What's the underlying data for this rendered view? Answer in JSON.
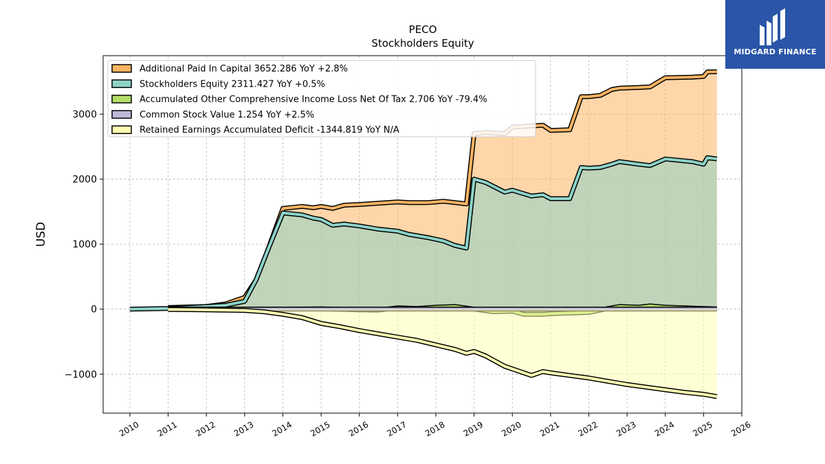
{
  "brand": {
    "name": "MIDGARD FINANCE",
    "bg": "#2a55a8"
  },
  "chart_data": {
    "type": "area",
    "title": "PECO",
    "subtitle": "Stockholders  Equity",
    "ylabel": "USD",
    "xlabel": "",
    "xlim": [
      2009.3,
      2026.0
    ],
    "ylim": [
      -1600,
      3900
    ],
    "yticks": [
      -1000,
      0,
      1000,
      2000,
      3000
    ],
    "xticks": [
      2010,
      2011,
      2012,
      2013,
      2014,
      2015,
      2016,
      2017,
      2018,
      2019,
      2020,
      2021,
      2022,
      2023,
      2024,
      2025,
      2026
    ],
    "grid": true,
    "legend_position": "top-left",
    "series": [
      {
        "name": "Additional Paid In Capital  3652.286 YoY +2.8%",
        "color": "#fdb462",
        "points": [
          [
            2011.0,
            25
          ],
          [
            2012.0,
            40
          ],
          [
            2012.5,
            80
          ],
          [
            2013.0,
            180
          ],
          [
            2013.3,
            450
          ],
          [
            2013.6,
            900
          ],
          [
            2014.0,
            1550
          ],
          [
            2014.5,
            1580
          ],
          [
            2014.8,
            1560
          ],
          [
            2015.0,
            1580
          ],
          [
            2015.3,
            1550
          ],
          [
            2015.6,
            1600
          ],
          [
            2016.0,
            1610
          ],
          [
            2016.5,
            1630
          ],
          [
            2017.0,
            1650
          ],
          [
            2017.3,
            1640
          ],
          [
            2017.8,
            1640
          ],
          [
            2018.2,
            1660
          ],
          [
            2018.5,
            1640
          ],
          [
            2018.8,
            1620
          ],
          [
            2019.0,
            2700
          ],
          [
            2019.3,
            2720
          ],
          [
            2019.8,
            2700
          ],
          [
            2020.0,
            2800
          ],
          [
            2020.5,
            2820
          ],
          [
            2020.8,
            2830
          ],
          [
            2021.0,
            2750
          ],
          [
            2021.5,
            2760
          ],
          [
            2021.8,
            3270
          ],
          [
            2022.0,
            3270
          ],
          [
            2022.3,
            3290
          ],
          [
            2022.6,
            3380
          ],
          [
            2022.8,
            3400
          ],
          [
            2023.3,
            3410
          ],
          [
            2023.6,
            3420
          ],
          [
            2024.0,
            3560
          ],
          [
            2024.7,
            3570
          ],
          [
            2025.0,
            3580
          ],
          [
            2025.1,
            3650
          ],
          [
            2025.35,
            3652
          ]
        ]
      },
      {
        "name": "Stockholders Equity  2311.427 YoY +0.5%",
        "color": "#8dd3c7",
        "points": [
          [
            2010.0,
            0
          ],
          [
            2011.0,
            10
          ],
          [
            2012.0,
            40
          ],
          [
            2012.5,
            60
          ],
          [
            2013.0,
            120
          ],
          [
            2013.3,
            450
          ],
          [
            2013.6,
            900
          ],
          [
            2014.0,
            1480
          ],
          [
            2014.5,
            1450
          ],
          [
            2014.8,
            1400
          ],
          [
            2015.0,
            1380
          ],
          [
            2015.3,
            1290
          ],
          [
            2015.6,
            1310
          ],
          [
            2016.0,
            1280
          ],
          [
            2016.5,
            1230
          ],
          [
            2017.0,
            1200
          ],
          [
            2017.3,
            1150
          ],
          [
            2017.8,
            1100
          ],
          [
            2018.2,
            1050
          ],
          [
            2018.5,
            980
          ],
          [
            2018.8,
            940
          ],
          [
            2019.0,
            2000
          ],
          [
            2019.3,
            1950
          ],
          [
            2019.8,
            1800
          ],
          [
            2020.0,
            1830
          ],
          [
            2020.5,
            1740
          ],
          [
            2020.8,
            1760
          ],
          [
            2021.0,
            1700
          ],
          [
            2021.5,
            1700
          ],
          [
            2021.8,
            2180
          ],
          [
            2022.0,
            2170
          ],
          [
            2022.3,
            2180
          ],
          [
            2022.6,
            2230
          ],
          [
            2022.8,
            2270
          ],
          [
            2023.3,
            2230
          ],
          [
            2023.6,
            2210
          ],
          [
            2024.0,
            2310
          ],
          [
            2024.7,
            2270
          ],
          [
            2025.0,
            2230
          ],
          [
            2025.1,
            2330
          ],
          [
            2025.35,
            2311
          ]
        ]
      },
      {
        "name": "Accumulated Other Comprehensive Income Loss Net Of Tax  2.706 YoY -79.4%",
        "color": "#b3de69",
        "points": [
          [
            2011.0,
            0
          ],
          [
            2014.0,
            0
          ],
          [
            2015.0,
            5
          ],
          [
            2016.0,
            -10
          ],
          [
            2016.5,
            -15
          ],
          [
            2017.0,
            20
          ],
          [
            2017.5,
            10
          ],
          [
            2018.0,
            30
          ],
          [
            2018.5,
            40
          ],
          [
            2019.0,
            0
          ],
          [
            2019.5,
            -40
          ],
          [
            2020.0,
            -30
          ],
          [
            2020.3,
            -80
          ],
          [
            2020.8,
            -80
          ],
          [
            2021.0,
            -70
          ],
          [
            2021.5,
            -60
          ],
          [
            2022.0,
            -50
          ],
          [
            2022.5,
            10
          ],
          [
            2022.8,
            40
          ],
          [
            2023.3,
            30
          ],
          [
            2023.6,
            50
          ],
          [
            2024.0,
            30
          ],
          [
            2024.5,
            20
          ],
          [
            2025.0,
            10
          ],
          [
            2025.35,
            3
          ]
        ]
      },
      {
        "name": "Common Stock Value  1.254 YoY +2.5%",
        "color": "#bebada",
        "points": [
          [
            2011.0,
            1
          ],
          [
            2025.35,
            1.254
          ]
        ]
      },
      {
        "name": "Retained Earnings Accumulated Deficit  -1344.819 YoY N/A",
        "color": "#ffffb3",
        "points": [
          [
            2011.0,
            -5
          ],
          [
            2012.0,
            -10
          ],
          [
            2013.0,
            -20
          ],
          [
            2013.5,
            -40
          ],
          [
            2014.0,
            -80
          ],
          [
            2014.5,
            -130
          ],
          [
            2015.0,
            -220
          ],
          [
            2015.5,
            -270
          ],
          [
            2016.0,
            -330
          ],
          [
            2016.5,
            -380
          ],
          [
            2017.0,
            -430
          ],
          [
            2017.5,
            -480
          ],
          [
            2018.0,
            -550
          ],
          [
            2018.5,
            -620
          ],
          [
            2018.8,
            -680
          ],
          [
            2019.0,
            -650
          ],
          [
            2019.3,
            -720
          ],
          [
            2019.8,
            -880
          ],
          [
            2020.0,
            -920
          ],
          [
            2020.5,
            -1020
          ],
          [
            2020.8,
            -960
          ],
          [
            2021.0,
            -980
          ],
          [
            2021.5,
            -1020
          ],
          [
            2022.0,
            -1060
          ],
          [
            2022.5,
            -1110
          ],
          [
            2023.0,
            -1160
          ],
          [
            2023.5,
            -1200
          ],
          [
            2024.0,
            -1240
          ],
          [
            2024.5,
            -1280
          ],
          [
            2025.0,
            -1310
          ],
          [
            2025.35,
            -1345
          ]
        ]
      }
    ]
  }
}
